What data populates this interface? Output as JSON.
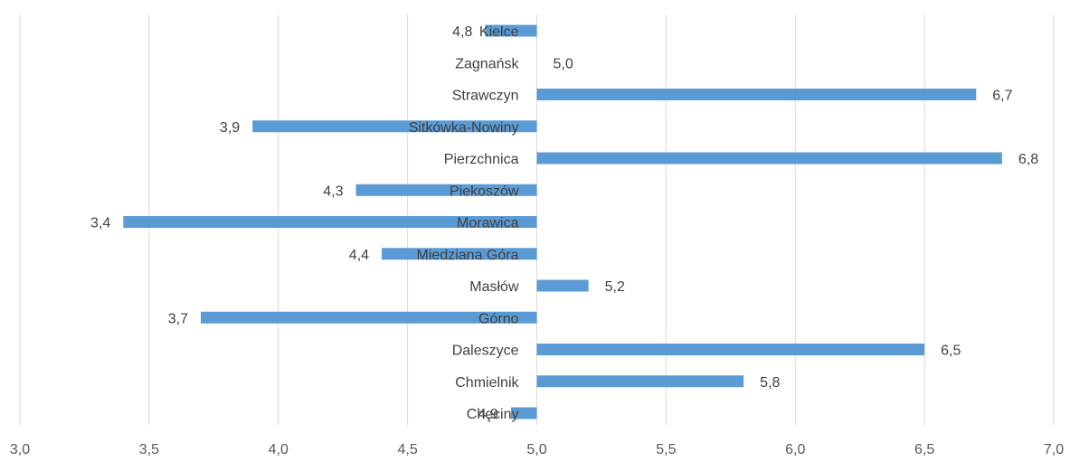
{
  "chart_data": {
    "type": "bar",
    "orientation": "horizontal",
    "baseline": 5.0,
    "categories": [
      "Kielce",
      "Zagnańsk",
      "Strawczyn",
      "Sitkówka-Nowiny",
      "Pierzchnica",
      "Piekoszów",
      "Morawica",
      "Miedziana Góra",
      "Masłów",
      "Górno",
      "Daleszyce",
      "Chmielnik",
      "Chęciny"
    ],
    "values": [
      4.8,
      5.0,
      6.7,
      3.9,
      6.8,
      4.3,
      3.4,
      4.4,
      5.2,
      3.7,
      6.5,
      5.8,
      4.9
    ],
    "value_labels": [
      "4,8",
      "5,0",
      "6,7",
      "3,9",
      "6,8",
      "4,3",
      "3,4",
      "4,4",
      "5,2",
      "3,7",
      "6,5",
      "5,8",
      "4,9"
    ],
    "xlim": [
      3.0,
      7.0
    ],
    "xticks": [
      3.0,
      3.5,
      4.0,
      4.5,
      5.0,
      5.5,
      6.0,
      6.5,
      7.0
    ],
    "xtick_labels": [
      "3,0",
      "3,5",
      "4,0",
      "4,5",
      "5,0",
      "5,5",
      "6,0",
      "6,5",
      "7,0"
    ],
    "grid": true,
    "legend": "none",
    "bar_color": "#5b9bd5",
    "title": "",
    "xlabel": "",
    "ylabel": ""
  }
}
